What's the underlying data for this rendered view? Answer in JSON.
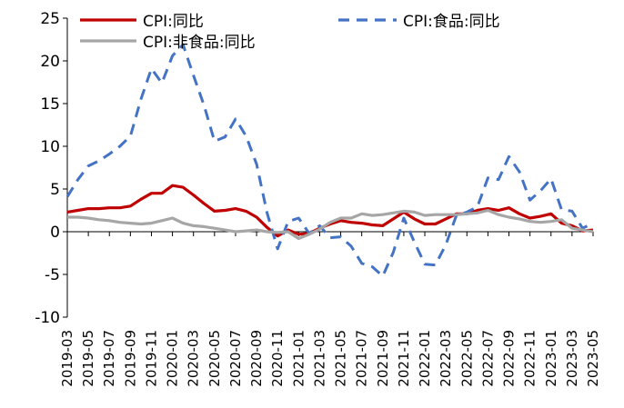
{
  "chart_data": {
    "type": "line",
    "title": "",
    "xlabel": "",
    "ylabel": "",
    "ylim": [
      -10,
      25
    ],
    "yticks": [
      -10,
      -5,
      0,
      5,
      10,
      15,
      20,
      25
    ],
    "xtick_labels": [
      "2019-03",
      "2019-05",
      "2019-07",
      "2019-09",
      "2019-11",
      "2020-01",
      "2020-03",
      "2020-05",
      "2020-07",
      "2020-09",
      "2020-11",
      "2021-01",
      "2021-03",
      "2021-05",
      "2021-07",
      "2021-09",
      "2021-11",
      "2022-01",
      "2022-03",
      "2022-05",
      "2022-07",
      "2022-09",
      "2022-11",
      "2023-01",
      "2023-03",
      "2023-05"
    ],
    "grid": false,
    "legend_position": "top",
    "x": [
      "2019-03",
      "2019-04",
      "2019-05",
      "2019-06",
      "2019-07",
      "2019-08",
      "2019-09",
      "2019-10",
      "2019-11",
      "2019-12",
      "2020-01",
      "2020-02",
      "2020-03",
      "2020-04",
      "2020-05",
      "2020-06",
      "2020-07",
      "2020-08",
      "2020-09",
      "2020-10",
      "2020-11",
      "2020-12",
      "2021-01",
      "2021-02",
      "2021-03",
      "2021-04",
      "2021-05",
      "2021-06",
      "2021-07",
      "2021-08",
      "2021-09",
      "2021-10",
      "2021-11",
      "2021-12",
      "2022-01",
      "2022-02",
      "2022-03",
      "2022-04",
      "2022-05",
      "2022-06",
      "2022-07",
      "2022-08",
      "2022-09",
      "2022-10",
      "2022-11",
      "2022-12",
      "2023-01",
      "2023-02",
      "2023-03",
      "2023-04",
      "2023-05"
    ],
    "series": [
      {
        "name": "CPI:同比",
        "color": "#C00000",
        "dash": "solid",
        "values": [
          2.3,
          2.5,
          2.7,
          2.7,
          2.8,
          2.8,
          3.0,
          3.8,
          4.5,
          4.5,
          5.4,
          5.2,
          4.3,
          3.3,
          2.4,
          2.5,
          2.7,
          2.4,
          1.7,
          0.5,
          -0.5,
          0.2,
          -0.3,
          -0.2,
          0.4,
          0.9,
          1.3,
          1.1,
          1.0,
          0.8,
          0.7,
          1.5,
          2.3,
          1.5,
          0.9,
          0.9,
          1.5,
          2.1,
          2.1,
          2.5,
          2.7,
          2.5,
          2.8,
          2.1,
          1.6,
          1.8,
          2.1,
          1.0,
          0.7,
          0.1,
          0.2
        ]
      },
      {
        "name": "CPI:食品:同比",
        "color": "#4472C4",
        "dash": "dashed",
        "values": [
          4.1,
          6.1,
          7.7,
          8.3,
          9.1,
          10.0,
          11.2,
          15.5,
          19.1,
          17.4,
          20.6,
          21.9,
          18.3,
          14.8,
          10.6,
          11.1,
          13.2,
          11.2,
          7.9,
          2.2,
          -2.0,
          1.2,
          1.6,
          -0.2,
          0.7,
          -0.7,
          -0.6,
          -1.7,
          -3.7,
          -4.1,
          -5.2,
          -2.4,
          1.6,
          -1.2,
          -3.8,
          -3.9,
          -1.5,
          1.9,
          2.3,
          2.9,
          6.3,
          6.1,
          8.8,
          7.0,
          3.7,
          4.8,
          6.2,
          2.6,
          2.4,
          0.4,
          1.0
        ]
      },
      {
        "name": "CPI:非食品:同比",
        "color": "#A6A6A6",
        "dash": "solid",
        "values": [
          1.7,
          1.7,
          1.6,
          1.4,
          1.3,
          1.1,
          1.0,
          0.9,
          1.0,
          1.3,
          1.6,
          1.0,
          0.7,
          0.6,
          0.4,
          0.2,
          0.0,
          0.1,
          0.2,
          0.0,
          -0.1,
          0.0,
          -0.8,
          -0.3,
          0.3,
          1.1,
          1.6,
          1.6,
          2.1,
          1.9,
          2.0,
          2.2,
          2.4,
          2.3,
          1.9,
          2.0,
          2.0,
          2.0,
          2.1,
          2.2,
          2.5,
          2.0,
          1.7,
          1.5,
          1.2,
          1.1,
          1.2,
          1.4,
          0.4,
          0.2,
          0.0
        ]
      }
    ]
  }
}
